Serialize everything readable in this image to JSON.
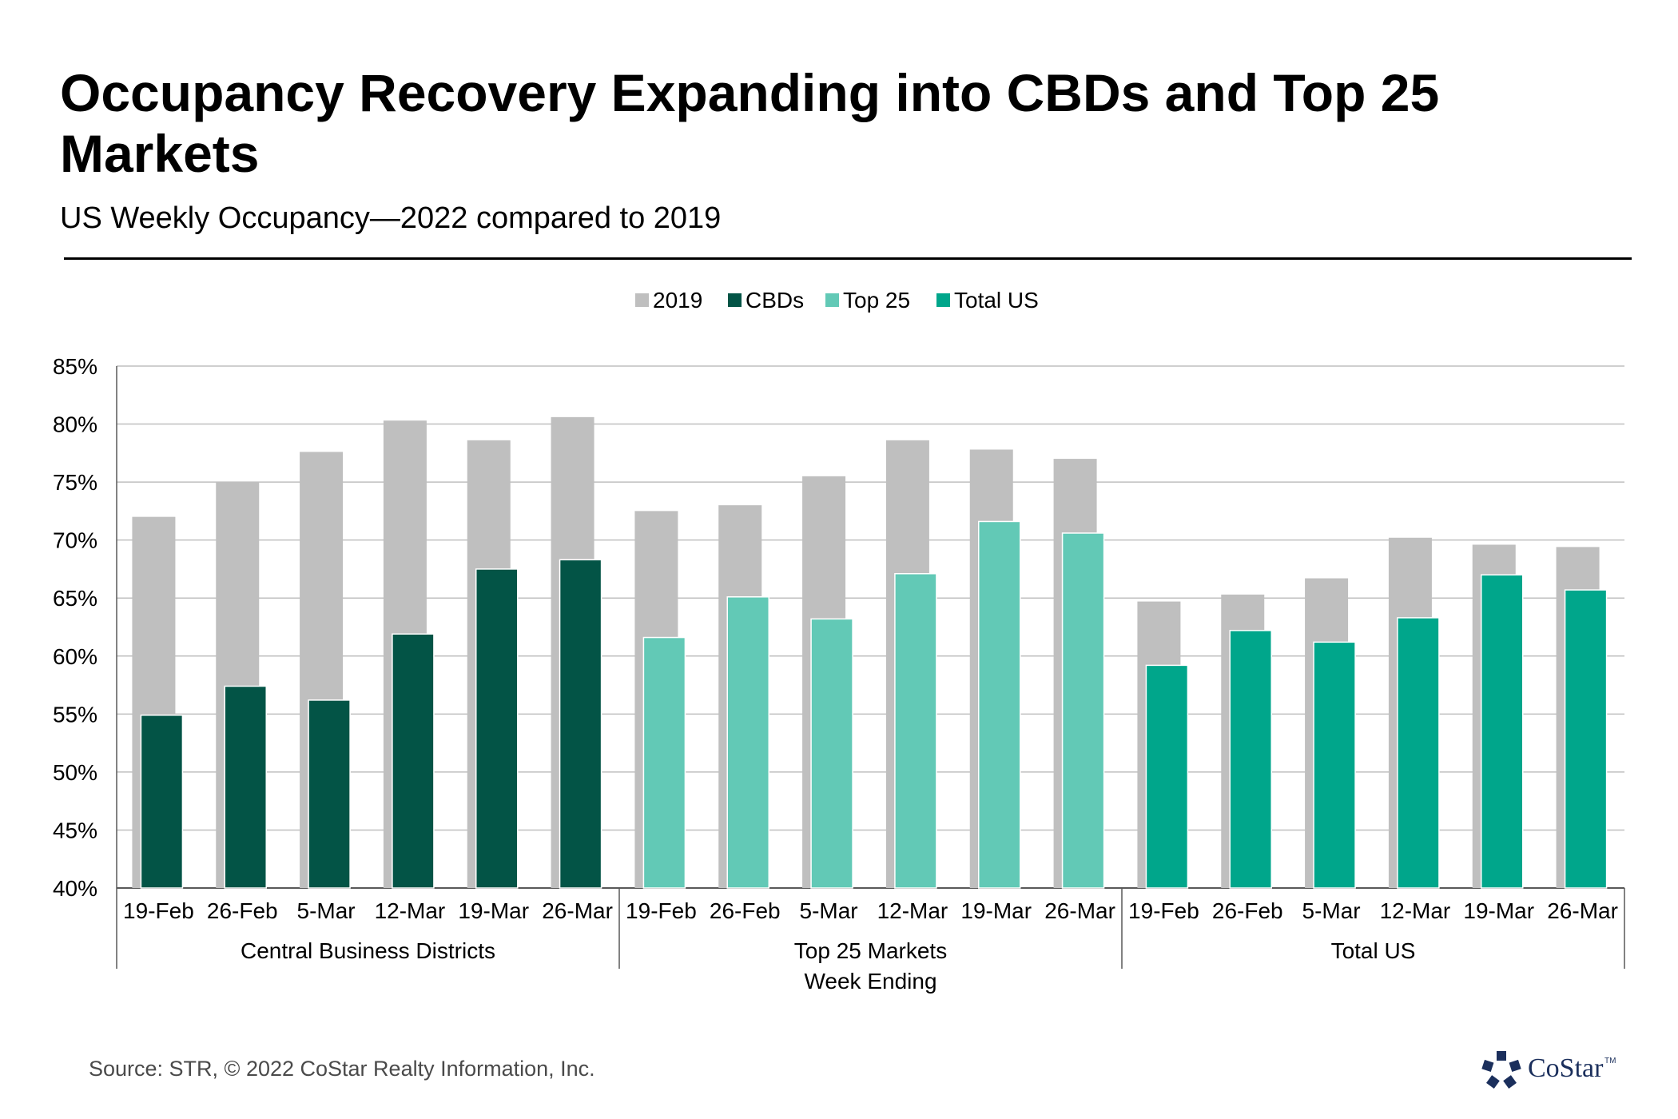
{
  "title": "Occupancy Recovery Expanding into CBDs and Top 25 Markets",
  "subtitle": "US Weekly Occupancy—2022 compared to 2019",
  "source": "Source: STR, © 2022  CoStar Realty Information, Inc.",
  "logo_text": "CoStar",
  "logo_tm": "TM",
  "colors": {
    "2019": "#bfbfbf",
    "CBDs": "#035446",
    "Top 25": "#62c9b6",
    "Total US": "#00a68b",
    "grid": "#bfbfbf",
    "axis": "#595959"
  },
  "chart_data": {
    "type": "bar",
    "title": "Occupancy Recovery Expanding into CBDs and Top 25 Markets",
    "subtitle": "US Weekly Occupancy—2022 compared to 2019",
    "xlabel": "Week Ending",
    "ylabel": "",
    "ylim": [
      40,
      85
    ],
    "y_ticks": [
      40,
      45,
      50,
      55,
      60,
      65,
      70,
      75,
      80,
      85
    ],
    "y_tick_suffix": "%",
    "grid": true,
    "legend": [
      "2019",
      "CBDs",
      "Top 25",
      "Total US"
    ],
    "legend_position": "top-center",
    "groups": [
      {
        "name": "Central Business Districts",
        "series_key": "CBDs",
        "categories": [
          "19-Feb",
          "26-Feb",
          "5-Mar",
          "12-Mar",
          "19-Mar",
          "26-Mar"
        ],
        "values_2019": [
          72.0,
          75.0,
          77.6,
          80.3,
          78.6,
          80.6
        ],
        "values_2022": [
          54.9,
          57.4,
          56.2,
          61.9,
          67.5,
          68.3
        ]
      },
      {
        "name": "Top 25 Markets",
        "series_key": "Top 25",
        "categories": [
          "19-Feb",
          "26-Feb",
          "5-Mar",
          "12-Mar",
          "19-Mar",
          "26-Mar"
        ],
        "values_2019": [
          72.5,
          73.0,
          75.5,
          78.6,
          77.8,
          77.0
        ],
        "values_2022": [
          61.6,
          65.1,
          63.2,
          67.1,
          71.6,
          70.6
        ]
      },
      {
        "name": "Total US",
        "series_key": "Total US",
        "categories": [
          "19-Feb",
          "26-Feb",
          "5-Mar",
          "12-Mar",
          "19-Mar",
          "26-Mar"
        ],
        "values_2019": [
          64.7,
          65.3,
          66.7,
          70.2,
          69.6,
          69.4
        ],
        "values_2022": [
          59.2,
          62.2,
          61.2,
          63.3,
          67.0,
          65.7
        ]
      }
    ]
  }
}
